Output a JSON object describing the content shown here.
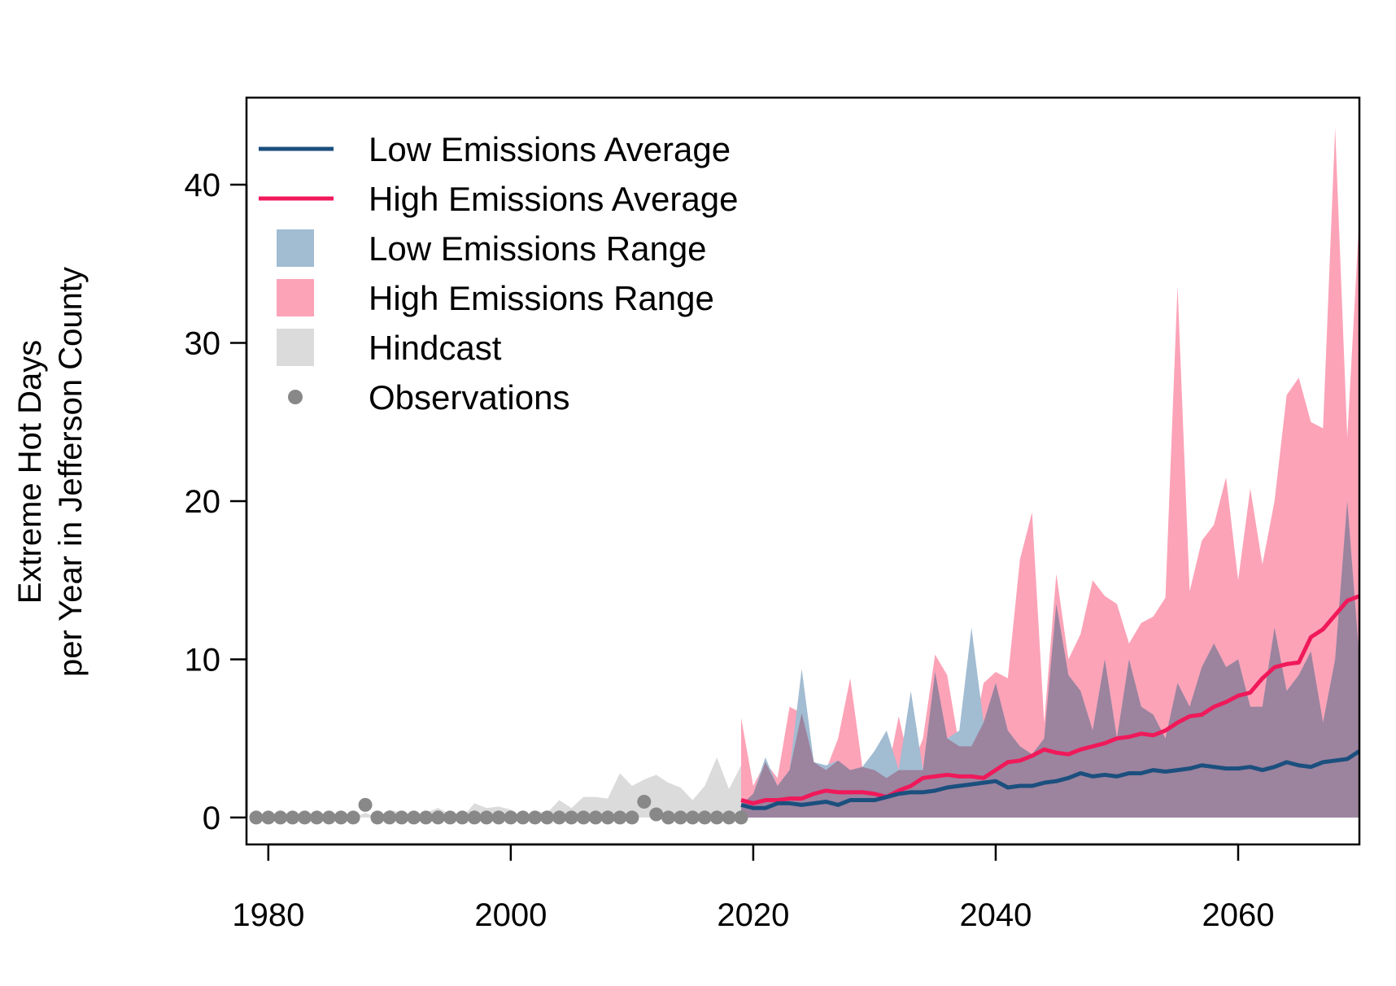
{
  "chart_data": {
    "type": "area",
    "title": "",
    "xlabel": "",
    "ylabel_lines": [
      "Extreme Hot Days",
      "per Year in Jefferson County"
    ],
    "xlim": [
      1978.2,
      2070
    ],
    "ylim": [
      -1.7,
      45.5
    ],
    "xticks": [
      1980,
      2000,
      2020,
      2040,
      2060
    ],
    "yticks": [
      0,
      10,
      20,
      30,
      40
    ],
    "grid": false,
    "legend_position": "top-left",
    "legend": [
      {
        "label": "Low Emissions Average",
        "kind": "line",
        "color": "#1b4f7e"
      },
      {
        "label": "High Emissions Average",
        "kind": "line",
        "color": "#f0195a"
      },
      {
        "label": "Low Emissions Range",
        "kind": "box",
        "color": "#a2bcd2"
      },
      {
        "label": "High Emissions Range",
        "kind": "box",
        "color": "#fca3b8"
      },
      {
        "label": "Hindcast",
        "kind": "box",
        "color": "#dbdbdb"
      },
      {
        "label": "Observations",
        "kind": "point",
        "color": "#888888"
      }
    ],
    "colors": {
      "low_avg": "#1b4f7e",
      "high_avg": "#f0195a",
      "low_range": "#a2bcd2",
      "high_range": "#fca3b8",
      "overlap": "#9c839e",
      "hindcast": "#dbdbdb",
      "observations": "#888888"
    },
    "series": {
      "hindcast": {
        "x": [
          1979,
          1980,
          1981,
          1982,
          1983,
          1984,
          1985,
          1986,
          1987,
          1988,
          1989,
          1990,
          1991,
          1992,
          1993,
          1994,
          1995,
          1996,
          1997,
          1998,
          1999,
          2000,
          2001,
          2002,
          2003,
          2004,
          2005,
          2006,
          2007,
          2008,
          2009,
          2010,
          2011,
          2012,
          2013,
          2014,
          2015,
          2016,
          2017,
          2018,
          2019
        ],
        "y": [
          0,
          0,
          0,
          0,
          0.3,
          0,
          0,
          0.2,
          0,
          0.3,
          0,
          0.5,
          0.3,
          0,
          0.3,
          0.6,
          0.2,
          0,
          0.9,
          0.6,
          0.7,
          0.5,
          0,
          0.4,
          0.3,
          1.1,
          0.6,
          1.3,
          1.3,
          1.2,
          2.8,
          2.0,
          2.4,
          2.7,
          2.2,
          1.9,
          1.1,
          2.0,
          3.8,
          1.8,
          3.3
        ]
      },
      "observations": {
        "x": [
          1979,
          1980,
          1981,
          1982,
          1983,
          1984,
          1985,
          1986,
          1987,
          1988,
          1989,
          1990,
          1991,
          1992,
          1993,
          1994,
          1995,
          1996,
          1997,
          1998,
          1999,
          2000,
          2001,
          2002,
          2003,
          2004,
          2005,
          2006,
          2007,
          2008,
          2009,
          2010,
          2011,
          2012,
          2013,
          2014,
          2015,
          2016,
          2017,
          2018,
          2019
        ],
        "y": [
          0,
          0,
          0,
          0,
          0,
          0,
          0,
          0,
          0,
          0.8,
          0,
          0,
          0,
          0,
          0,
          0,
          0,
          0,
          0,
          0,
          0,
          0,
          0,
          0,
          0,
          0,
          0,
          0,
          0,
          0,
          0,
          0,
          1.0,
          0.2,
          0,
          0,
          0,
          0,
          0,
          0,
          0
        ]
      },
      "x_future": [
        2019,
        2020,
        2021,
        2022,
        2023,
        2024,
        2025,
        2026,
        2027,
        2028,
        2029,
        2030,
        2031,
        2032,
        2033,
        2034,
        2035,
        2036,
        2037,
        2038,
        2039,
        2040,
        2041,
        2042,
        2043,
        2044,
        2045,
        2046,
        2047,
        2048,
        2049,
        2050,
        2051,
        2052,
        2053,
        2054,
        2055,
        2056,
        2057,
        2058,
        2059,
        2060,
        2061,
        2062,
        2063,
        2064,
        2065,
        2066,
        2067,
        2068,
        2069,
        2070
      ],
      "low_range_max": [
        0.8,
        1.5,
        3.8,
        2.0,
        3.0,
        9.4,
        3.5,
        3.3,
        3.6,
        3.0,
        3.2,
        4.2,
        5.5,
        3.0,
        8.0,
        3.0,
        9.2,
        5.0,
        5.5,
        12.0,
        6.0,
        8.5,
        5.5,
        4.5,
        4.0,
        5.0,
        13.5,
        9.0,
        8.0,
        5.5,
        10.0,
        5.0,
        10.0,
        7.0,
        6.5,
        5.0,
        8.5,
        7.0,
        9.5,
        11.0,
        9.5,
        10.0,
        7.0,
        7.0,
        12.0,
        8.0,
        9.0,
        10.5,
        6.0,
        10.0,
        20.0,
        10.0
      ],
      "high_range_max": [
        6.3,
        2.0,
        3.5,
        2.5,
        7.0,
        6.6,
        3.5,
        3.0,
        5.0,
        8.8,
        3.2,
        3.0,
        2.5,
        6.4,
        3.0,
        5.0,
        10.3,
        9.0,
        4.5,
        4.5,
        8.5,
        9.2,
        8.8,
        16.3,
        19.3,
        6.0,
        15.4,
        10.0,
        11.6,
        15.0,
        14.0,
        13.5,
        11.0,
        12.3,
        12.7,
        13.9,
        33.6,
        14.3,
        17.5,
        18.5,
        21.5,
        15.0,
        20.8,
        16.0,
        20.0,
        26.7,
        27.8,
        25.0,
        24.6,
        43.6,
        24.0,
        38.0
      ],
      "low_avg": [
        0.8,
        0.6,
        0.6,
        0.9,
        0.9,
        0.8,
        0.9,
        1.0,
        0.8,
        1.1,
        1.1,
        1.1,
        1.3,
        1.5,
        1.6,
        1.6,
        1.7,
        1.9,
        2.0,
        2.1,
        2.2,
        2.3,
        1.9,
        2.0,
        2.0,
        2.2,
        2.3,
        2.5,
        2.8,
        2.6,
        2.7,
        2.6,
        2.8,
        2.8,
        3.0,
        2.9,
        3.0,
        3.1,
        3.3,
        3.2,
        3.1,
        3.1,
        3.2,
        3.0,
        3.2,
        3.5,
        3.3,
        3.2,
        3.5,
        3.6,
        3.7,
        4.2
      ],
      "high_avg": [
        1.1,
        0.9,
        1.1,
        1.1,
        1.2,
        1.2,
        1.5,
        1.7,
        1.6,
        1.6,
        1.6,
        1.5,
        1.3,
        1.7,
        2.0,
        2.5,
        2.6,
        2.7,
        2.6,
        2.6,
        2.5,
        3.0,
        3.5,
        3.6,
        3.9,
        4.3,
        4.1,
        4.0,
        4.3,
        4.5,
        4.7,
        5.0,
        5.1,
        5.3,
        5.2,
        5.5,
        6.0,
        6.4,
        6.5,
        7.0,
        7.3,
        7.7,
        7.9,
        8.8,
        9.5,
        9.7,
        9.8,
        11.4,
        11.9,
        12.8,
        13.7,
        14.0
      ]
    }
  }
}
